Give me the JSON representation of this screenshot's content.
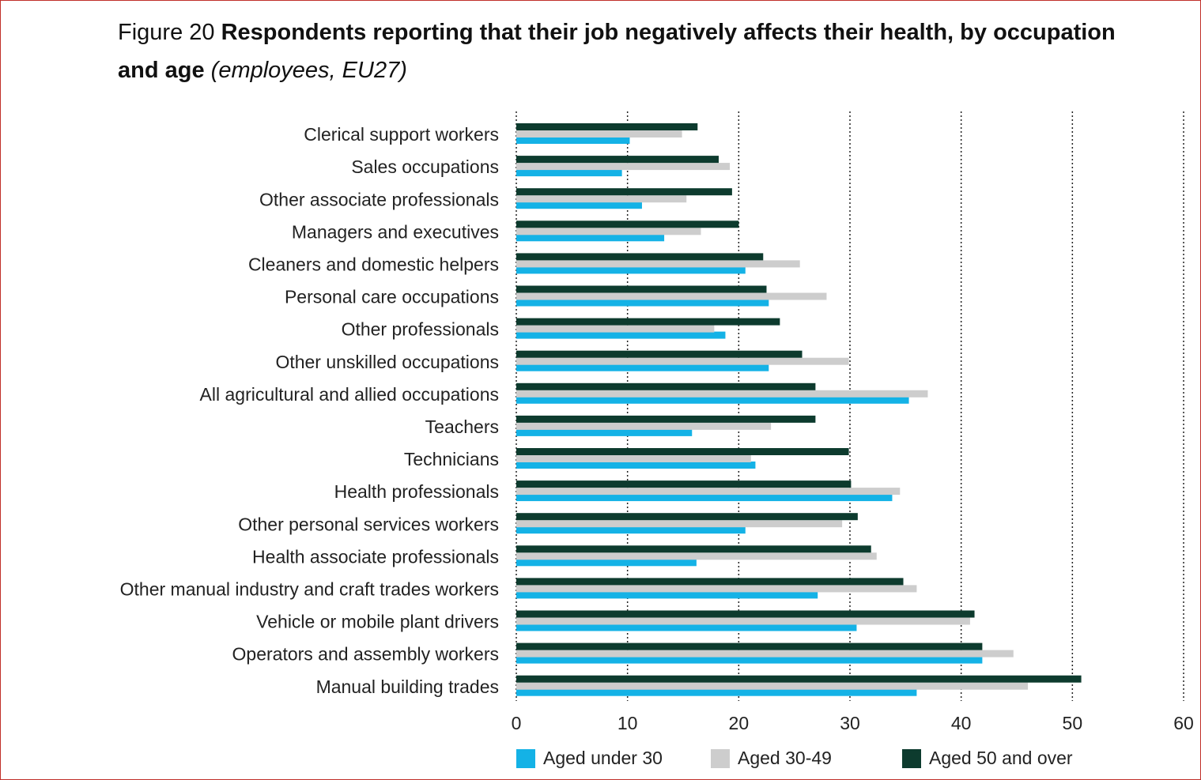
{
  "chart_data": {
    "type": "bar",
    "orientation": "horizontal",
    "title_prefix": "Figure 20",
    "title": "Respondents reporting that their job negatively affects their health, by occupation and age",
    "subtitle": "(employees, EU27)",
    "categories": [
      "Clerical support workers",
      "Sales occupations",
      "Other associate professionals",
      "Managers and executives",
      "Cleaners and domestic helpers",
      "Personal care occupations",
      "Other professionals",
      "Other unskilled occupations",
      "All agricultural and allied occupations",
      "Teachers",
      "Technicians",
      "Health professionals",
      "Other personal services workers",
      "Health associate professionals",
      "Other manual industry and craft trades workers",
      "Vehicle or mobile plant drivers",
      "Operators and assembly workers",
      "Manual building trades"
    ],
    "series": [
      {
        "name": "Aged under 30",
        "color": "#14b2e6",
        "values": [
          10.2,
          9.5,
          11.3,
          13.3,
          20.6,
          22.7,
          18.8,
          22.7,
          35.3,
          15.8,
          21.5,
          33.8,
          20.6,
          16.2,
          27.1,
          30.6,
          41.9,
          36.0
        ]
      },
      {
        "name": "Aged 30-49",
        "color": "#cdcdcd",
        "values": [
          14.9,
          19.2,
          15.3,
          16.6,
          25.5,
          27.9,
          17.8,
          29.9,
          37.0,
          22.9,
          21.1,
          34.5,
          29.3,
          32.4,
          36.0,
          40.8,
          44.7,
          46.0
        ]
      },
      {
        "name": "Aged 50 and over",
        "color": "#0d3b2e",
        "values": [
          16.3,
          18.2,
          19.4,
          20.0,
          22.2,
          22.5,
          23.7,
          25.7,
          26.9,
          26.9,
          29.9,
          30.1,
          30.7,
          31.9,
          34.8,
          41.2,
          41.9,
          50.8
        ]
      }
    ],
    "xlim": [
      0,
      60
    ],
    "xticks": [
      0,
      10,
      20,
      30,
      40,
      50,
      60
    ],
    "grid": true
  }
}
